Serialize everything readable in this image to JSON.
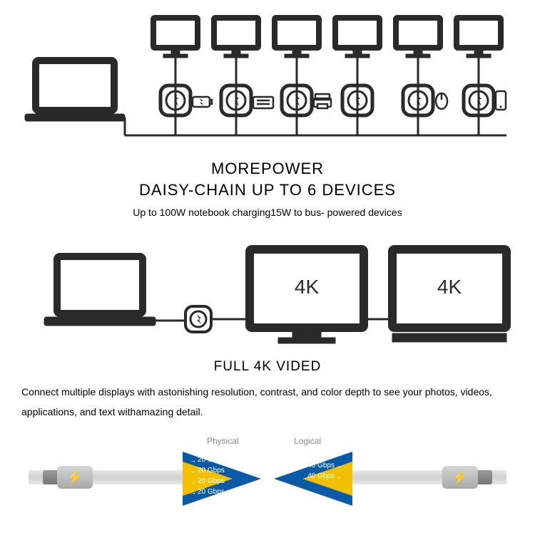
{
  "colors": {
    "icon": "#2a2a2a",
    "line": "#000000",
    "chevBlue": "#0a5aa8",
    "chevYellow": "#f2c000",
    "text": "#ffffff"
  },
  "section1": {
    "title1": "MOREPOWER",
    "title2": "DAISY-CHAIN UP TO 6 DEVICES",
    "body": "Up to 100W notebook charging15W to bus- powered devices",
    "monitorCount": 6,
    "laptop": true,
    "peripherals": [
      "charger",
      "keyboard",
      "printer",
      "mouse",
      "phone"
    ]
  },
  "section2": {
    "title": "FULL 4K VIDED",
    "body": "Connect multiple displays with astonishing resolution, contrast, and color depth to see your photos, videos, applications, and text withamazing detail.",
    "displayLabel": "4K",
    "displayCount": 2
  },
  "section3": {
    "labelLeft": "Physical",
    "labelRight": "Logical",
    "lanesLeft": [
      "20 Gbps",
      "20 Gbps",
      "20 Gbps",
      "20 Gbps"
    ],
    "lanesRight": [
      "40 Gbps",
      "40 Gbps"
    ]
  }
}
